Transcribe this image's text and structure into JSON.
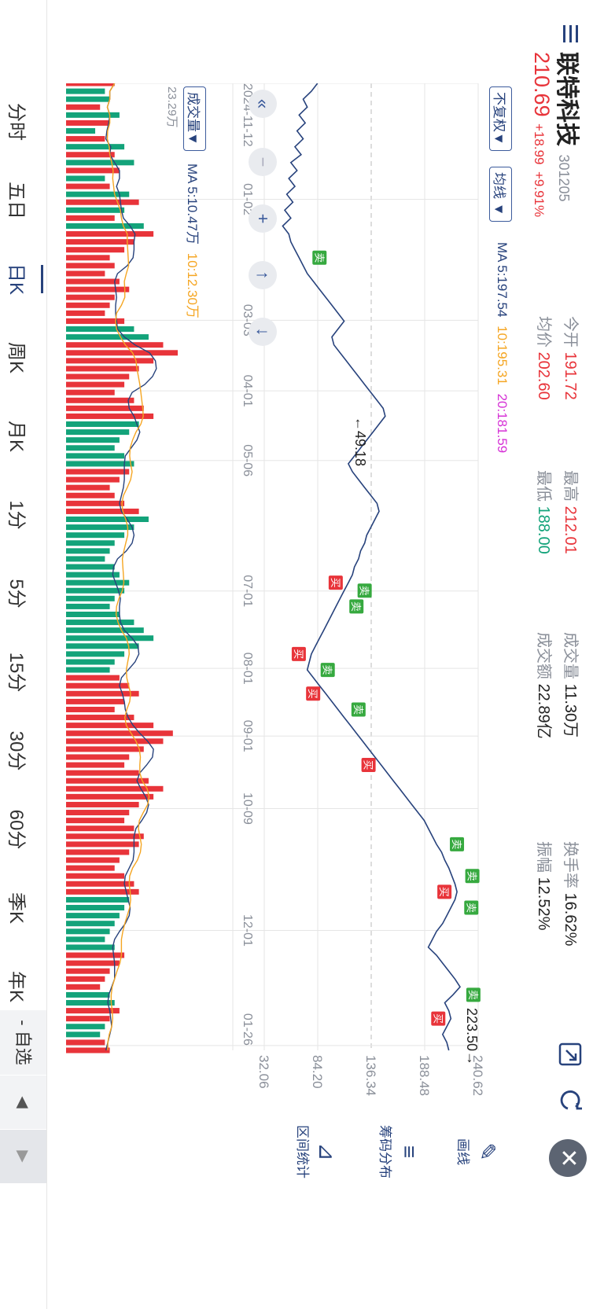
{
  "header": {
    "name": "联特科技",
    "code": "301205",
    "price": "210.69",
    "change": "+18.99",
    "pct": "+9.91%",
    "open_label": "今开",
    "open": "191.72",
    "avg_label": "均价",
    "avg": "202.60",
    "high_label": "最高",
    "high": "212.01",
    "low_label": "最低",
    "low": "188.00",
    "vol_label": "成交量",
    "vol": "11.30万",
    "amount_label": "成交额",
    "amount": "22.89亿",
    "turnover_label": "换手率",
    "turnover": "16.62%",
    "amplitude_label": "振幅",
    "amplitude": "12.52%"
  },
  "controls": {
    "adjust": "不复权▼",
    "indicator": "均线 ▼",
    "ma": [
      "MA 5:197.54",
      "10:195.31",
      "20:181.59"
    ],
    "vol_select": "成交量▼",
    "vol_ma": [
      "MA 5:10.47万",
      "10:12.30万"
    ],
    "vol_axis": "23.29万"
  },
  "price_axis": [
    "240.62",
    "188.48",
    "136.34",
    "84.20",
    "32.06"
  ],
  "date_axis": [
    "2024-11-12",
    "01-02",
    "03-03",
    "04-01",
    "05-06",
    "07-01",
    "08-01",
    "09-01",
    "10-09",
    "12-01",
    "01-26"
  ],
  "annotations": {
    "low": "←49.18",
    "high": "223.50→",
    "buy": "买",
    "sell": "卖"
  },
  "tools": [
    "画线",
    "筹码分布",
    "区间统计"
  ],
  "tabs": [
    "分时",
    "五日",
    "日K",
    "周K",
    "月K",
    "1分",
    "5分",
    "15分",
    "30分",
    "60分",
    "季K",
    "年K"
  ],
  "active_tab": "日K",
  "watchlist_btn": "- 自选",
  "colors": {
    "up": "#e8343a",
    "down": "#13a37a",
    "line": "#27427c",
    "ma10": "#f5a623",
    "ma20": "#d631d6"
  },
  "icons": [
    "menu-icon",
    "expand-icon",
    "refresh-icon",
    "close-icon",
    "collapse-icon",
    "zoom-out-icon",
    "zoom-in-icon",
    "arrow-up-icon",
    "arrow-down-icon",
    "triangle-up-icon",
    "triangle-down-icon"
  ],
  "chart_data": {
    "type": "line",
    "y_range": [
      32.06,
      240.62
    ],
    "price_line": [
      84,
      78,
      70,
      74,
      66,
      72,
      64,
      70,
      62,
      68,
      58,
      64,
      56,
      62,
      54,
      60,
      52,
      58,
      50,
      56,
      58,
      62,
      66,
      70,
      74,
      80,
      86,
      92,
      98,
      104,
      110,
      104,
      98,
      100,
      106,
      112,
      118,
      124,
      130,
      136,
      142,
      148,
      150,
      144,
      138,
      132,
      126,
      120,
      114,
      118,
      124,
      130,
      136,
      142,
      144,
      140,
      136,
      132,
      130,
      126,
      124,
      120,
      118,
      114,
      110,
      106,
      102,
      98,
      94,
      90,
      86,
      82,
      78,
      76,
      74,
      80,
      86,
      92,
      98,
      104,
      110,
      116,
      122,
      128,
      134,
      140,
      146,
      152,
      158,
      164,
      170,
      176,
      182,
      188,
      192,
      196,
      200,
      205,
      208,
      212,
      215,
      218,
      220,
      218,
      214,
      210,
      206,
      200,
      196,
      192,
      200,
      206,
      212,
      218,
      223,
      216,
      208,
      212,
      214,
      210,
      206,
      210,
      212
    ],
    "volume": [
      10,
      8,
      9,
      7,
      11,
      9,
      6,
      8,
      12,
      10,
      14,
      11,
      8,
      9,
      13,
      15,
      12,
      10,
      16,
      18,
      14,
      12,
      9,
      10,
      8,
      11,
      13,
      10,
      9,
      8,
      12,
      14,
      17,
      20,
      23,
      18,
      15,
      13,
      12,
      10,
      14,
      16,
      18,
      15,
      13,
      11,
      10,
      12,
      14,
      13,
      11,
      9,
      10,
      12,
      15,
      17,
      14,
      12,
      10,
      9,
      8,
      10,
      11,
      13,
      12,
      10,
      9,
      11,
      14,
      16,
      18,
      15,
      12,
      10,
      9,
      11,
      13,
      15,
      12,
      10,
      14,
      18,
      22,
      20,
      16,
      13,
      12,
      15,
      17,
      20,
      18,
      15,
      13,
      12,
      14,
      16,
      15,
      13,
      11,
      10,
      12,
      14,
      15,
      13,
      12,
      11,
      10,
      9,
      8,
      10,
      12,
      11,
      9,
      8,
      7,
      9,
      10,
      11,
      9,
      8,
      7,
      8,
      9
    ],
    "markers": [
      {
        "label": "卖",
        "i": 22
      },
      {
        "label": "买",
        "i": 63
      },
      {
        "label": "卖",
        "i": 64
      },
      {
        "label": "卖",
        "i": 66
      },
      {
        "label": "买",
        "i": 72
      },
      {
        "label": "卖",
        "i": 74
      },
      {
        "label": "买",
        "i": 77
      },
      {
        "label": "卖",
        "i": 79
      },
      {
        "label": "买",
        "i": 86
      },
      {
        "label": "卖",
        "i": 96
      },
      {
        "label": "卖",
        "i": 100
      },
      {
        "label": "买",
        "i": 102
      },
      {
        "label": "卖",
        "i": 104
      },
      {
        "label": "卖",
        "i": 115
      },
      {
        "label": "买",
        "i": 118
      }
    ]
  }
}
